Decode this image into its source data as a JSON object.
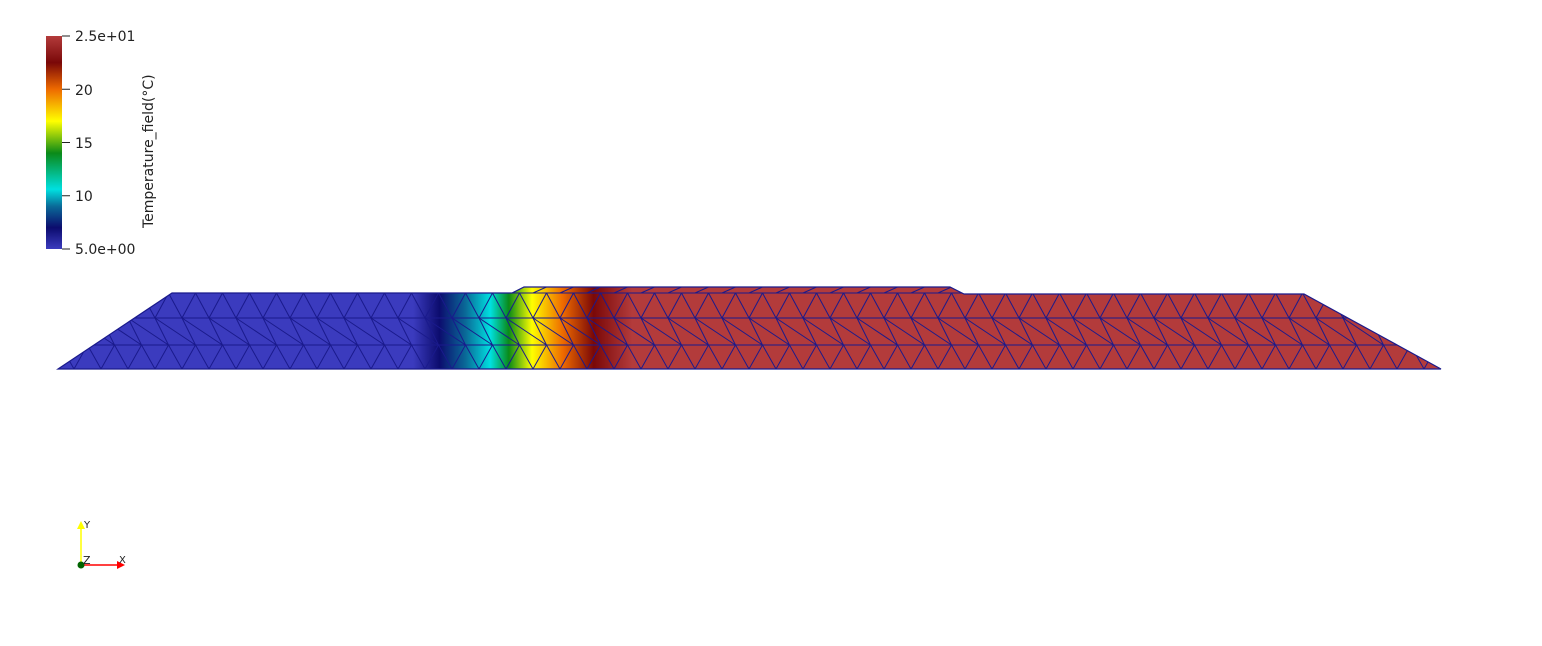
{
  "legend": {
    "title": "Temperature_field(°C)",
    "max_label": "2.5e+01",
    "min_label": "5.0e+00",
    "ticks": [
      "20",
      "15",
      "10"
    ],
    "range": [
      5,
      25
    ],
    "tick_values": [
      20,
      15,
      10
    ],
    "colormap_stops": [
      {
        "value": 5.0,
        "color": "#3b3bbe"
      },
      {
        "value": 7.0,
        "color": "#0c0c6e"
      },
      {
        "value": 9.0,
        "color": "#0a6a98"
      },
      {
        "value": 10.6,
        "color": "#00e0e0"
      },
      {
        "value": 14.0,
        "color": "#0a8a18"
      },
      {
        "value": 17.0,
        "color": "#ffff00"
      },
      {
        "value": 20.0,
        "color": "#ee6a00"
      },
      {
        "value": 22.5,
        "color": "#7a0808"
      },
      {
        "value": 25.0,
        "color": "#b33b3b"
      }
    ]
  },
  "axes": {
    "x_label": "X",
    "y_label": "Y",
    "z_label": "Z",
    "x_color": "#ff0000",
    "y_color": "#ffff00",
    "z_color": "#006400"
  },
  "mesh": {
    "edge_color": "#1a1a8c",
    "cold_color": "#3b3bbe",
    "hot_color": "#b33b3b"
  }
}
